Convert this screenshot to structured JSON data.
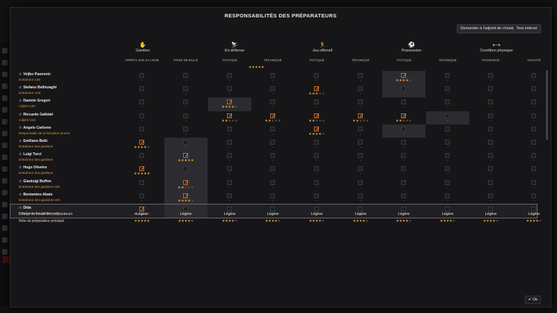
{
  "dialog_title": "RESPONSABILITÉS DES PRÉPARATEURS",
  "buttons": {
    "suggest": "Demander à l'adjoint de choisir",
    "clear": "Tout enlever",
    "ok": "Ok"
  },
  "categories": [
    {
      "label": "Gardien",
      "icon": "goalkeeper-icon",
      "glyph": "✋"
    },
    {
      "label": "En défense",
      "icon": "tackle-icon",
      "glyph": "⛷"
    },
    {
      "label": "Jeu offensif",
      "icon": "runner-icon",
      "glyph": "🏃"
    },
    {
      "label": "Possession",
      "icon": "pass-icon",
      "glyph": "⚽"
    },
    {
      "label": "Condition physique",
      "icon": "fitness-icon",
      "glyph": "⟷"
    }
  ],
  "columns": [
    "ARRÊTS SUR SA LIGNE",
    "PRISE DE BALLE",
    "TACTIQUE",
    "TECHNIQUE",
    "TACTIQUE",
    "TECHNIQUE",
    "TACTIQUE",
    "TECHNIQUE",
    "PUISSANCE",
    "VIVACITÉ"
  ],
  "stray_stars": "★★★★★",
  "coaches": [
    {
      "name": "Veljko Paunovic",
      "role": "Entraîneur U20",
      "cells": [
        0,
        0,
        0,
        0,
        0,
        0,
        4,
        0,
        0,
        0
      ],
      "checked": [
        0,
        0,
        0,
        0,
        0,
        0,
        1,
        0,
        0,
        0
      ],
      "hl": [
        0,
        0,
        0,
        0,
        0,
        0,
        1,
        0,
        0,
        0
      ]
    },
    {
      "name": "Stefano Bellinzaghi",
      "role": "Entraîneur U18",
      "cells": [
        0,
        0,
        0,
        0,
        3,
        0,
        0,
        0,
        0,
        0
      ],
      "checked": [
        0,
        0,
        0,
        0,
        1,
        0,
        0,
        0,
        0,
        0
      ],
      "hl": [
        0,
        0,
        0,
        0,
        0,
        0,
        1,
        0,
        0,
        0
      ]
    },
    {
      "name": "Daniele Gregori",
      "role": "Adjoint U20",
      "cells": [
        0,
        0,
        4,
        0,
        0,
        0,
        0,
        0,
        0,
        0
      ],
      "checked": [
        0,
        0,
        1,
        0,
        0,
        0,
        0,
        0,
        0,
        0
      ],
      "hl": [
        0,
        0,
        1,
        0,
        0,
        0,
        0,
        0,
        0,
        0
      ]
    },
    {
      "name": "Riccardo Galbiati",
      "role": "Adjoint U18",
      "cells": [
        0,
        0,
        2,
        2,
        2,
        2,
        2,
        0,
        0,
        0
      ],
      "checked": [
        0,
        0,
        1,
        1,
        1,
        1,
        1,
        0,
        0,
        0
      ],
      "hl": [
        0,
        0,
        0,
        0,
        0,
        0,
        0,
        1,
        0,
        0
      ]
    },
    {
      "name": "Angelo Carbone",
      "role": "Responsable de la formation jeunes",
      "cells": [
        0,
        0,
        0,
        0,
        4,
        0,
        0,
        0,
        0,
        0
      ],
      "checked": [
        0,
        0,
        0,
        0,
        1,
        0,
        0,
        0,
        0,
        0
      ],
      "hl": [
        0,
        0,
        0,
        0,
        0,
        0,
        1,
        0,
        0,
        0
      ]
    },
    {
      "name": "Emiliano Betti",
      "role": "Entraîneur des gardiens",
      "cells": [
        4,
        0,
        0,
        0,
        0,
        0,
        0,
        0,
        0,
        0
      ],
      "checked": [
        1,
        0,
        0,
        0,
        0,
        0,
        0,
        0,
        0,
        0
      ],
      "hl": [
        0,
        1,
        0,
        0,
        0,
        0,
        0,
        0,
        0,
        0
      ]
    },
    {
      "name": "Luigi Turci",
      "role": "Entraîneur des gardiens",
      "cells": [
        0,
        5,
        0,
        0,
        0,
        0,
        0,
        0,
        0,
        0
      ],
      "checked": [
        0,
        1,
        0,
        0,
        0,
        0,
        0,
        0,
        0,
        0
      ],
      "hl": [
        0,
        1,
        0,
        0,
        0,
        0,
        0,
        0,
        0,
        0
      ]
    },
    {
      "name": "Hugo Oliveira",
      "role": "Entraîneur des gardiens",
      "cells": [
        5,
        0,
        0,
        0,
        0,
        0,
        0,
        0,
        0,
        0
      ],
      "checked": [
        1,
        0,
        0,
        0,
        0,
        0,
        0,
        0,
        0,
        0
      ],
      "hl": [
        0,
        1,
        0,
        0,
        0,
        0,
        0,
        0,
        0,
        0
      ]
    },
    {
      "name": "Gianluigi Buffon",
      "role": "Entraîneur des gardiens U20",
      "cells": [
        0,
        2,
        0,
        0,
        0,
        0,
        0,
        0,
        0,
        0
      ],
      "checked": [
        0,
        1,
        0,
        0,
        0,
        0,
        0,
        0,
        0,
        0
      ],
      "hl": [
        0,
        1,
        0,
        0,
        0,
        0,
        0,
        0,
        0,
        0
      ]
    },
    {
      "name": "Beniamino Abate",
      "role": "Entraîneur des gardiens U20",
      "cells": [
        0,
        4,
        0,
        0,
        0,
        0,
        0,
        0,
        0,
        0
      ],
      "checked": [
        0,
        1,
        0,
        0,
        0,
        0,
        0,
        0,
        0,
        0
      ],
      "hl": [
        0,
        1,
        0,
        0,
        0,
        0,
        0,
        0,
        0,
        0
      ]
    },
    {
      "name": "Dida",
      "role": "Entraîneur des gardiens U18",
      "cells": [
        1,
        0,
        0,
        0,
        0,
        0,
        0,
        0,
        0,
        0
      ],
      "checked": [
        1,
        0,
        0,
        0,
        0,
        0,
        0,
        0,
        0,
        0
      ],
      "hl": [
        0,
        1,
        0,
        0,
        0,
        0,
        0,
        0,
        0,
        0
      ],
      "selected": true
    }
  ],
  "summary": {
    "workload_label": "Charge de travail des préparateurs",
    "workload": [
      "Légère",
      "Légère",
      "Légère",
      "Légère",
      "Légère",
      "Légère",
      "Légère",
      "Légère",
      "Légère",
      "Légère"
    ],
    "rating_label": "Note du préparateur principal",
    "ratings": [
      5,
      4.5,
      4,
      4,
      4,
      4,
      4,
      4,
      4,
      4
    ]
  }
}
